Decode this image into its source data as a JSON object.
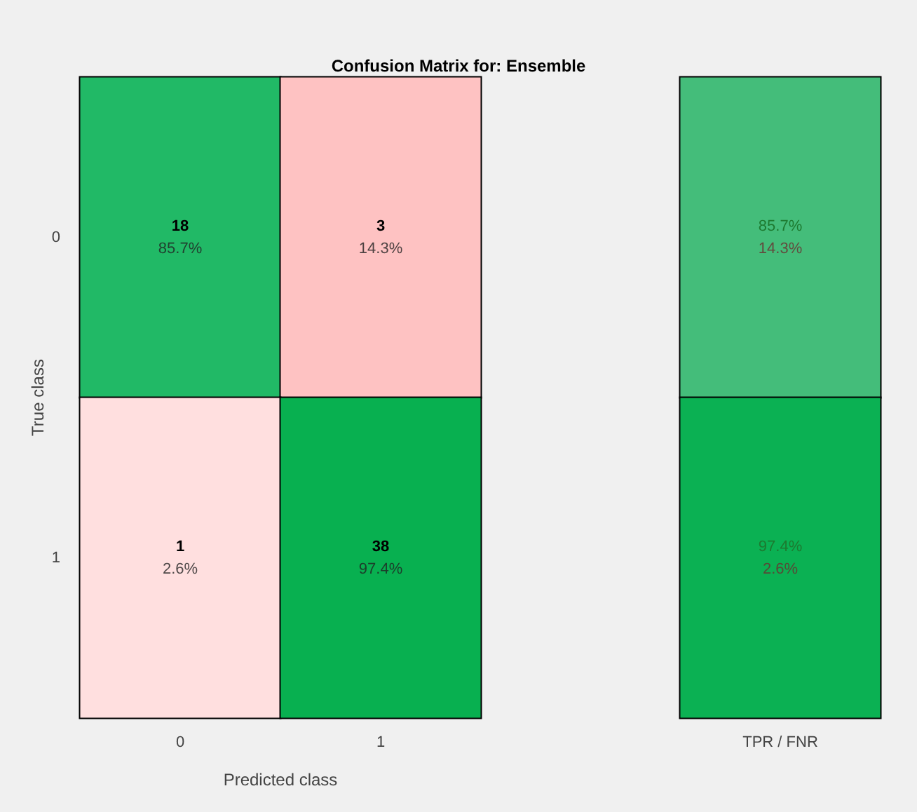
{
  "chart_data": [
    {
      "type": "heatmap",
      "title": "Confusion Matrix for: Ensemble",
      "xlabel": "Predicted class",
      "ylabel": "True class",
      "categories": [
        "0",
        "1"
      ],
      "y_categories": [
        "0",
        "1"
      ],
      "cells": [
        [
          18,
          3
        ],
        [
          1,
          38
        ]
      ],
      "colors": [
        [
          "#21b966",
          "#fec2c2"
        ],
        [
          "#ffdfdf",
          "#08b050"
        ]
      ],
      "data_labels": true,
      "annotations": [
        "85.7%",
        "14.3%",
        "2.6%",
        "97.4%"
      ]
    },
    {
      "type": "heatmap",
      "categories": [
        "TPR / FNR"
      ],
      "y_categories": [
        "0",
        "1"
      ],
      "tick_labels": "x",
      "cells": [
        [
          85.7
        ],
        [
          97.4
        ]
      ],
      "cell_labels": [
        [
          "85.7%"
        ],
        [
          "97.4%"
        ]
      ],
      "colors": [
        [
          "#44bd7a"
        ],
        [
          "#0bb153"
        ]
      ],
      "annotations": [
        "14.3%",
        "2.6%"
      ]
    }
  ]
}
